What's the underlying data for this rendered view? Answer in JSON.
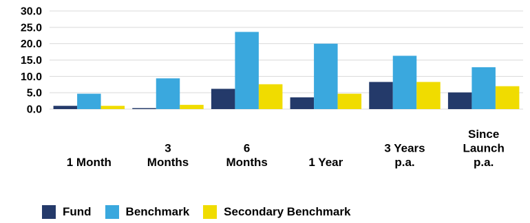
{
  "chart_data": {
    "type": "bar",
    "categories": [
      [
        "1 Month"
      ],
      [
        "3",
        "Months"
      ],
      [
        "6",
        "Months"
      ],
      [
        "1 Year"
      ],
      [
        "3 Years",
        "p.a."
      ],
      [
        "Since",
        "Launch",
        "p.a."
      ]
    ],
    "series": [
      {
        "name": "Fund",
        "color": "#243A6A",
        "values": [
          1.0,
          0.3,
          6.2,
          3.6,
          8.3,
          5.1
        ]
      },
      {
        "name": "Benchmark",
        "color": "#3AA8DE",
        "values": [
          4.7,
          9.4,
          23.6,
          20.0,
          16.3,
          12.8
        ]
      },
      {
        "name": "Secondary Benchmark",
        "color": "#F0DC00",
        "values": [
          1.0,
          1.3,
          7.6,
          4.7,
          8.3,
          7.0
        ]
      }
    ],
    "yticks": [
      "0.0",
      "5.0",
      "10.0",
      "15.0",
      "20.0",
      "25.0",
      "30.0"
    ],
    "ylim": [
      0,
      30
    ],
    "grid": true,
    "legend": "bottom"
  }
}
